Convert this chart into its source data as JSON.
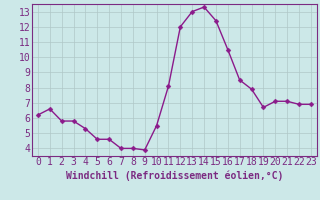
{
  "x": [
    0,
    1,
    2,
    3,
    4,
    5,
    6,
    7,
    8,
    9,
    10,
    11,
    12,
    13,
    14,
    15,
    16,
    17,
    18,
    19,
    20,
    21,
    22,
    23
  ],
  "y": [
    6.2,
    6.6,
    5.8,
    5.8,
    5.3,
    4.6,
    4.6,
    4.0,
    4.0,
    3.9,
    5.5,
    8.1,
    12.0,
    13.0,
    13.3,
    12.4,
    10.5,
    8.5,
    7.9,
    6.7,
    7.1,
    7.1,
    6.9,
    6.9
  ],
  "line_color": "#8b1a8b",
  "marker": "D",
  "markersize": 2.5,
  "linewidth": 1.0,
  "bg_color": "#cce8e8",
  "grid_color": "#b0c8c8",
  "xlabel": "Windchill (Refroidissement éolien,°C)",
  "xlabel_fontsize": 7,
  "tick_fontsize": 7,
  "xlim": [
    -0.5,
    23.5
  ],
  "ylim": [
    3.5,
    13.5
  ],
  "yticks": [
    4,
    5,
    6,
    7,
    8,
    9,
    10,
    11,
    12,
    13
  ],
  "xticks": [
    0,
    1,
    2,
    3,
    4,
    5,
    6,
    7,
    8,
    9,
    10,
    11,
    12,
    13,
    14,
    15,
    16,
    17,
    18,
    19,
    20,
    21,
    22,
    23
  ],
  "axis_color": "#7b2b82",
  "label_color": "#7b2b82",
  "spine_color": "#7b2b82"
}
